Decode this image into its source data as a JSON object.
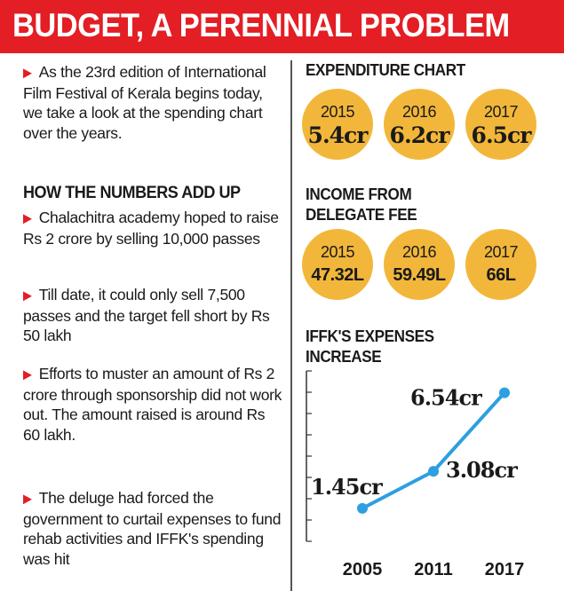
{
  "header": {
    "title": "BUDGET, A PERENNIAL PROBLEM"
  },
  "intro": "As the 23rd edition of International Film Festival of Kerala begins today, we take a look at the spending chart over the years.",
  "numbers_heading": "HOW THE NUMBERS ADD UP",
  "bullets": [
    "Chalachitra academy hoped to raise Rs 2 crore by selling 10,000 passes",
    "Till date, it could only sell 7,500 passes and the target fell short by Rs 50 lakh",
    "Efforts to muster an amount of Rs 2 crore through sponsorship did not work out. The amount raised is around Rs 60 lakh.",
    "The deluge had forced the government to curtail expenses to fund rehab activities and IFFK's spending was hit"
  ],
  "colors": {
    "accent": "#e31e24",
    "bubble": "#f2b73a",
    "line": "#2e9fe0"
  },
  "chart_data": [
    {
      "type": "bubbles",
      "title": "EXPENDITURE CHART",
      "categories": [
        "2015",
        "2016",
        "2017"
      ],
      "labels": [
        "5.4cr",
        "6.2cr",
        "6.5cr"
      ],
      "values": [
        5.4,
        6.2,
        6.5
      ],
      "unit": "crore"
    },
    {
      "type": "bubbles",
      "title_lines": [
        "INCOME FROM",
        "DELEGATE FEE"
      ],
      "categories": [
        "2015",
        "2016",
        "2017"
      ],
      "labels": [
        "47.32L",
        "59.49L",
        "66L"
      ],
      "values": [
        47.32,
        59.49,
        66
      ],
      "unit": "lakh"
    },
    {
      "type": "line",
      "title_lines": [
        "IFFK'S EXPENSES",
        "INCREASE"
      ],
      "categories": [
        "2005",
        "2011",
        "2017"
      ],
      "labels": [
        "1.45cr",
        "3.08cr",
        "6.54cr"
      ],
      "values": [
        1.45,
        3.08,
        6.54
      ],
      "ylim": [
        0,
        7.5
      ],
      "grid": false
    }
  ]
}
